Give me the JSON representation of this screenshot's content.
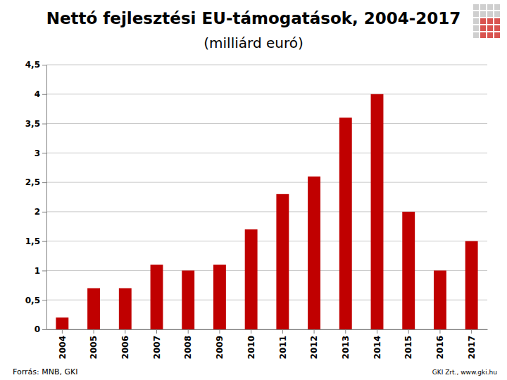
{
  "chart_data": {
    "type": "bar",
    "title": "Nettó fejlesztési EU-támogatások, 2004-2017",
    "subtitle": "(milliárd euró)",
    "categories": [
      "2004",
      "2005",
      "2006",
      "2007",
      "2008",
      "2009",
      "2010",
      "2011",
      "2012",
      "2013",
      "2014",
      "2015",
      "2016",
      "2017"
    ],
    "values": [
      0.2,
      0.7,
      0.7,
      1.1,
      1.0,
      1.1,
      1.7,
      2.3,
      2.6,
      3.6,
      4.0,
      2.0,
      1.0,
      1.5
    ],
    "color": "#c00000",
    "ylim": [
      0,
      4.5
    ],
    "yticks": [
      0,
      {
        "value": 0.5,
        "label": "0,5"
      },
      1,
      {
        "value": 1.5,
        "label": "1,5"
      },
      2,
      {
        "value": 2.5,
        "label": "2,5"
      },
      3,
      {
        "value": 3.5,
        "label": "3,5"
      },
      4,
      {
        "value": 4.5,
        "label": "4,5"
      }
    ],
    "grid": true,
    "annotations": [
      "Forrás: MNB, GKI",
      "GKI Zrt., www.gki.hu"
    ]
  }
}
